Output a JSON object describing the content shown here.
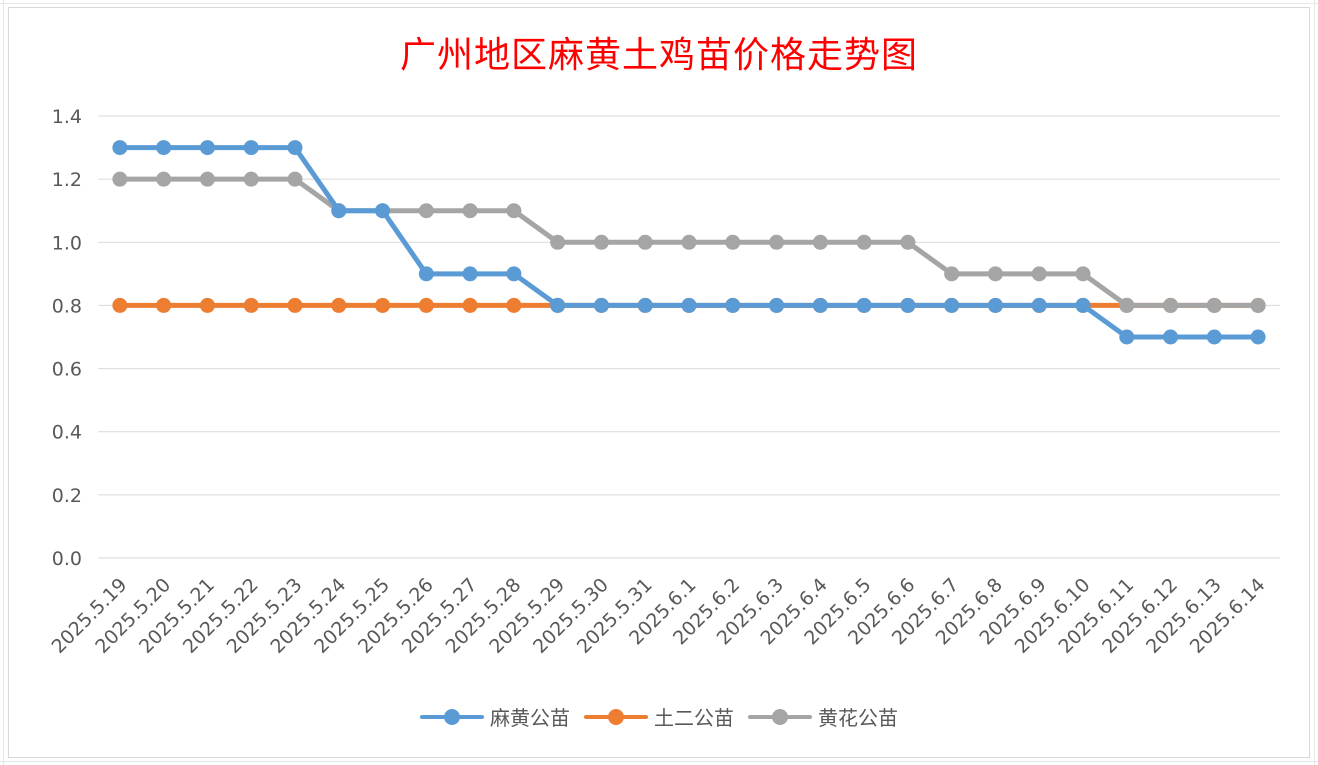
{
  "chart_data": {
    "type": "line",
    "title": "广州地区麻黄土鸡苗价格走势图",
    "xlabel": "",
    "ylabel": "",
    "ylim": [
      0,
      1.4
    ],
    "yticks": [
      "0.0",
      "0.2",
      "0.4",
      "0.6",
      "0.8",
      "1.0",
      "1.2",
      "1.4"
    ],
    "grid": true,
    "legend_position": "bottom",
    "categories": [
      "2025.5.19",
      "2025.5.20",
      "2025.5.21",
      "2025.5.22",
      "2025.5.23",
      "2025.5.24",
      "2025.5.25",
      "2025.5.26",
      "2025.5.27",
      "2025.5.28",
      "2025.5.29",
      "2025.5.30",
      "2025.5.31",
      "2025.6.1",
      "2025.6.2",
      "2025.6.3",
      "2025.6.4",
      "2025.6.5",
      "2025.6.6",
      "2025.6.7",
      "2025.6.8",
      "2025.6.9",
      "2025.6.10",
      "2025.6.11",
      "2025.6.12",
      "2025.6.13",
      "2025.6.14"
    ],
    "series": [
      {
        "name": "麻黄公苗",
        "color": "#5b9bd5",
        "values": [
          1.3,
          1.3,
          1.3,
          1.3,
          1.3,
          1.1,
          1.1,
          0.9,
          0.9,
          0.9,
          0.8,
          0.8,
          0.8,
          0.8,
          0.8,
          0.8,
          0.8,
          0.8,
          0.8,
          0.8,
          0.8,
          0.8,
          0.8,
          0.7,
          0.7,
          0.7,
          0.7
        ]
      },
      {
        "name": "土二公苗",
        "color": "#ed7d31",
        "values": [
          0.8,
          0.8,
          0.8,
          0.8,
          0.8,
          0.8,
          0.8,
          0.8,
          0.8,
          0.8,
          0.8,
          0.8,
          0.8,
          0.8,
          0.8,
          0.8,
          0.8,
          0.8,
          0.8,
          0.8,
          0.8,
          0.8,
          0.8,
          0.8,
          0.8,
          0.8,
          0.8
        ]
      },
      {
        "name": "黄花公苗",
        "color": "#a5a5a5",
        "values": [
          1.2,
          1.2,
          1.2,
          1.2,
          1.2,
          1.1,
          1.1,
          1.1,
          1.1,
          1.1,
          1.0,
          1.0,
          1.0,
          1.0,
          1.0,
          1.0,
          1.0,
          1.0,
          1.0,
          0.9,
          0.9,
          0.9,
          0.9,
          0.8,
          0.8,
          0.8,
          0.8
        ]
      }
    ]
  }
}
